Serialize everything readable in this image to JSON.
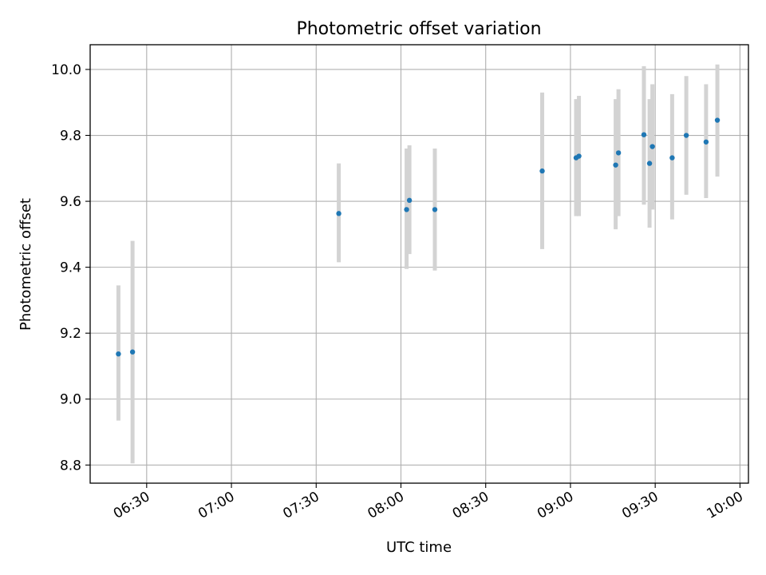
{
  "chart_data": {
    "type": "scatter",
    "title": "Photometric offset variation",
    "xlabel": "UTC time",
    "ylabel": "Photometric offset",
    "x_axis": {
      "type": "time",
      "lim": [
        "06:10",
        "10:03"
      ],
      "ticks": [
        "06:30",
        "07:00",
        "07:30",
        "08:00",
        "08:30",
        "09:00",
        "09:30",
        "10:00"
      ]
    },
    "y_axis": {
      "lim": [
        8.745,
        10.075
      ],
      "ticks": [
        8.8,
        9.0,
        9.2,
        9.4,
        9.6,
        9.8,
        10.0
      ],
      "tick_labels": [
        "8.8",
        "9.0",
        "9.2",
        "9.4",
        "9.6",
        "9.8",
        "10.0"
      ]
    },
    "grid": true,
    "marker_color": "#1f77b4",
    "errorbar_color": "#d3d3d3",
    "points": [
      {
        "x": "06:20",
        "y": 9.137,
        "lo": 8.935,
        "hi": 9.345
      },
      {
        "x": "06:25",
        "y": 9.143,
        "lo": 8.805,
        "hi": 9.48
      },
      {
        "x": "07:38",
        "y": 9.563,
        "lo": 9.415,
        "hi": 9.715
      },
      {
        "x": "08:02",
        "y": 9.575,
        "lo": 9.395,
        "hi": 9.76
      },
      {
        "x": "08:03",
        "y": 9.603,
        "lo": 9.44,
        "hi": 9.77
      },
      {
        "x": "08:12",
        "y": 9.575,
        "lo": 9.39,
        "hi": 9.76
      },
      {
        "x": "08:50",
        "y": 9.692,
        "lo": 9.455,
        "hi": 9.93
      },
      {
        "x": "09:02",
        "y": 9.732,
        "lo": 9.555,
        "hi": 9.91
      },
      {
        "x": "09:03",
        "y": 9.737,
        "lo": 9.555,
        "hi": 9.92
      },
      {
        "x": "09:16",
        "y": 9.71,
        "lo": 9.515,
        "hi": 9.91
      },
      {
        "x": "09:17",
        "y": 9.747,
        "lo": 9.555,
        "hi": 9.94
      },
      {
        "x": "09:26",
        "y": 9.802,
        "lo": 9.59,
        "hi": 10.01
      },
      {
        "x": "09:28",
        "y": 9.715,
        "lo": 9.52,
        "hi": 9.91
      },
      {
        "x": "09:29",
        "y": 9.766,
        "lo": 9.575,
        "hi": 9.955
      },
      {
        "x": "09:36",
        "y": 9.732,
        "lo": 9.545,
        "hi": 9.925
      },
      {
        "x": "09:41",
        "y": 9.8,
        "lo": 9.62,
        "hi": 9.98
      },
      {
        "x": "09:48",
        "y": 9.78,
        "lo": 9.61,
        "hi": 9.955
      },
      {
        "x": "09:52",
        "y": 9.846,
        "lo": 9.675,
        "hi": 10.015
      }
    ]
  }
}
